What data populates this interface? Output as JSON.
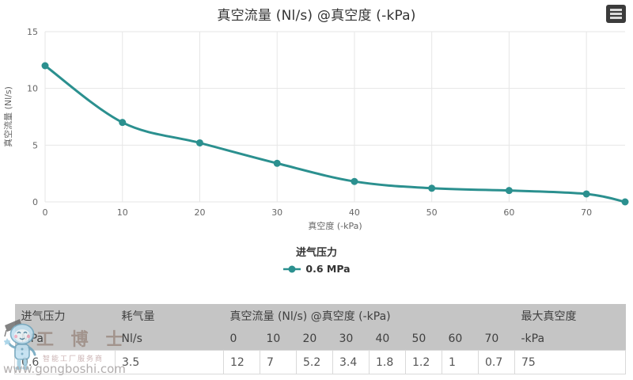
{
  "chart": {
    "title": "真空流量 (Nl/s) @真空度 (-kPa)",
    "legend_title": "进气压力",
    "series_label": "0.6 MPa"
  },
  "chart_data": {
    "type": "line",
    "title": "真空流量 (Nl/s) @真空度 (-kPa)",
    "x": [
      0,
      10,
      20,
      30,
      40,
      50,
      60,
      70,
      75
    ],
    "series": [
      {
        "name": "0.6 MPa",
        "values": [
          12,
          7,
          5.2,
          3.4,
          1.8,
          1.2,
          1,
          0.7,
          0
        ]
      }
    ],
    "xlabel": "真空度 (-kPa)",
    "ylabel": "真空流量 (Nl/s)",
    "xlim": [
      0,
      75
    ],
    "ylim": [
      0,
      15
    ],
    "x_ticks": [
      0,
      10,
      20,
      30,
      40,
      50,
      60,
      70
    ],
    "y_ticks": [
      0,
      5,
      10,
      15
    ],
    "grid": true,
    "legend_position": "bottom",
    "legend_title": "进气压力"
  },
  "table": {
    "header1": {
      "pressure": "进气压力",
      "consumption": "耗气量",
      "flow_span": "真空流量 (Nl/s) @真空度 (-kPa)",
      "max_vacuum": "最大真空度"
    },
    "header2": {
      "pressure_unit": "MPa",
      "consumption_unit": "Nl/s",
      "vacuum_ticks": [
        "0",
        "10",
        "20",
        "30",
        "40",
        "50",
        "60",
        "70"
      ],
      "max_vacuum_unit": "-kPa"
    },
    "row": {
      "pressure": "0.6",
      "consumption": "3.5",
      "flows": [
        "12",
        "7",
        "5.2",
        "3.4",
        "1.8",
        "1.2",
        "1",
        "0.7"
      ],
      "max_vacuum": "75"
    }
  },
  "watermark": {
    "brand": "工 博 士",
    "tagline": "智能工厂服务商",
    "url": "www.gongboshi.com"
  },
  "colors": {
    "accent": "#2b908f",
    "grid": "#e6e6e6",
    "axis_text": "#666666",
    "title_text": "#333333",
    "table_header_bg": "#c5c5c5",
    "table_border": "#d9d9d9",
    "export_btn_bg": "#3b3b3b"
  }
}
